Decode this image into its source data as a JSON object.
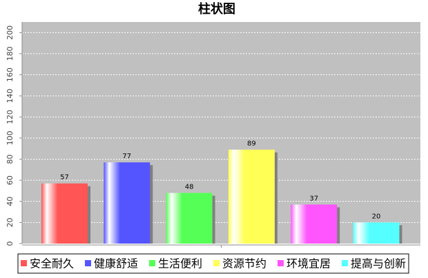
{
  "chart_data": {
    "type": "bar",
    "title": "柱状图",
    "categories": [
      null
    ],
    "series": [
      {
        "name": "安全耐久",
        "color": "#ff5555",
        "values": [
          57
        ]
      },
      {
        "name": "健康舒适",
        "color": "#5555ff",
        "values": [
          77
        ]
      },
      {
        "name": "生活便利",
        "color": "#55ff55",
        "values": [
          48
        ]
      },
      {
        "name": "资源节约",
        "color": "#ffff55",
        "values": [
          89
        ]
      },
      {
        "name": "环境宜居",
        "color": "#ff55ff",
        "values": [
          37
        ]
      },
      {
        "name": "提高与创新",
        "color": "#55ffff",
        "values": [
          20
        ]
      }
    ],
    "ylim": [
      0,
      210
    ],
    "yticks": [
      0,
      20,
      40,
      60,
      80,
      100,
      120,
      140,
      160,
      180,
      200
    ],
    "grid": true
  }
}
